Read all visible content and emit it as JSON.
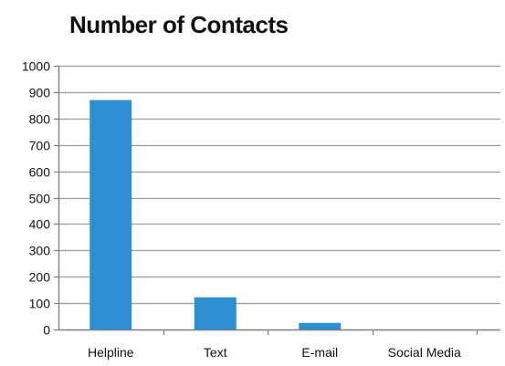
{
  "chart_data": {
    "type": "bar",
    "title": "Number of Contacts",
    "xlabel": "",
    "ylabel": "",
    "categories": [
      "Helpline",
      "Text",
      "E-mail",
      "Social Media"
    ],
    "values": [
      870,
      122,
      25,
      0
    ],
    "ylim": [
      0,
      1000
    ],
    "yticks": [
      0,
      100,
      200,
      300,
      400,
      500,
      600,
      700,
      800,
      900,
      1000
    ],
    "grid": true,
    "legend": "none",
    "colors": {
      "bar": "#2b8fd0",
      "grid": "#9a9a9a",
      "axis": "#7f7f7f"
    }
  }
}
